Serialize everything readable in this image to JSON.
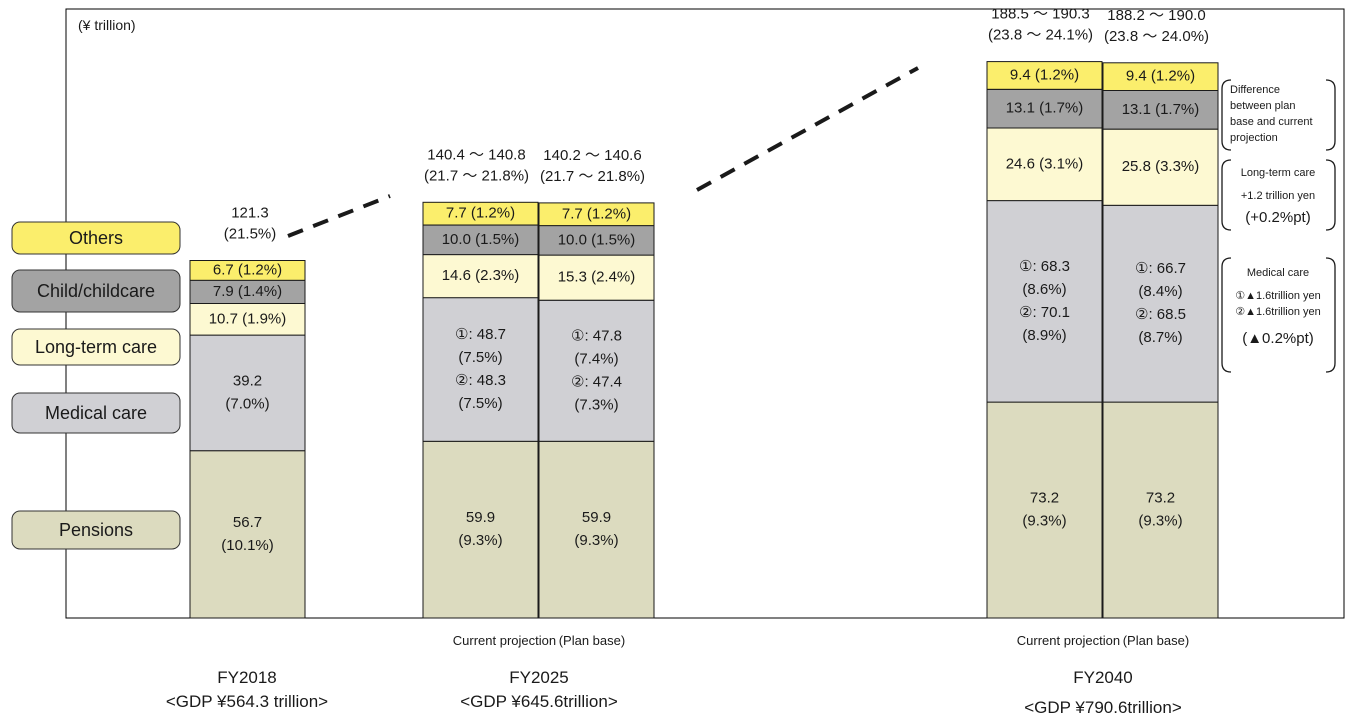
{
  "chart_data": {
    "type": "bar",
    "stacked": true,
    "unit_label": "(¥ trillion)",
    "legend": [
      {
        "key": "others",
        "label": "Others",
        "color": "#fbee6c"
      },
      {
        "key": "child",
        "label": "Child/childcare",
        "color": "#a3a3a3"
      },
      {
        "key": "ltc",
        "label": "Long-term care",
        "color": "#fdf9d2"
      },
      {
        "key": "medical",
        "label": "Medical care",
        "color": "#d0d0d4"
      },
      {
        "key": "pensions",
        "label": "Pensions",
        "color": "#dcdbbf"
      }
    ],
    "groups": [
      {
        "year": "FY2018",
        "gdp": "<GDP ¥564.3 trillion>",
        "projection_label": ""
      },
      {
        "year": "FY2025",
        "gdp": "<GDP ¥645.6trillion>",
        "projection_label": "Current projection (Plan base)"
      },
      {
        "year": "FY2040",
        "gdp": "<GDP ¥790.6trillion>",
        "projection_label": "Current projection (Plan base)"
      }
    ],
    "bars": [
      {
        "group": 0,
        "total": [
          "121.3",
          "(21.5%)"
        ],
        "segments": [
          {
            "key": "pensions",
            "value": 56.7,
            "label": [
              "56.7",
              "(10.1%)"
            ]
          },
          {
            "key": "medical",
            "value": 39.2,
            "label": [
              "39.2",
              "(7.0%)"
            ]
          },
          {
            "key": "ltc",
            "value": 10.7,
            "label": [
              "10.7 (1.9%)"
            ]
          },
          {
            "key": "child",
            "value": 7.9,
            "label": [
              "7.9 (1.4%)"
            ]
          },
          {
            "key": "others",
            "value": 6.7,
            "label": [
              "6.7 (1.2%)"
            ]
          }
        ]
      },
      {
        "group": 1,
        "total": [
          "140.4 ～ 140.8",
          "(21.7 ～ 21.8%)"
        ],
        "segments": [
          {
            "key": "pensions",
            "value": 59.9,
            "label": [
              "59.9",
              "(9.3%)"
            ]
          },
          {
            "key": "medical",
            "value": 48.7,
            "label": [
              "①: 48.7",
              "(7.5%)",
              "②: 48.3",
              "(7.5%)"
            ]
          },
          {
            "key": "ltc",
            "value": 14.6,
            "label": [
              "14.6 (2.3%)"
            ]
          },
          {
            "key": "child",
            "value": 10.0,
            "label": [
              "10.0 (1.5%)"
            ]
          },
          {
            "key": "others",
            "value": 7.7,
            "label": [
              "7.7 (1.2%)"
            ]
          }
        ]
      },
      {
        "group": 1,
        "total": [
          "140.2 ～ 140.6",
          "(21.7 ～ 21.8%)"
        ],
        "segments": [
          {
            "key": "pensions",
            "value": 59.9,
            "label": [
              "59.9",
              "(9.3%)"
            ]
          },
          {
            "key": "medical",
            "value": 47.8,
            "label": [
              "①: 47.8",
              "(7.4%)",
              "②: 47.4",
              "(7.3%)"
            ]
          },
          {
            "key": "ltc",
            "value": 15.3,
            "label": [
              "15.3 (2.4%)"
            ]
          },
          {
            "key": "child",
            "value": 10.0,
            "label": [
              "10.0 (1.5%)"
            ]
          },
          {
            "key": "others",
            "value": 7.7,
            "label": [
              "7.7 (1.2%)"
            ]
          }
        ]
      },
      {
        "group": 2,
        "total": [
          "188.5 ～ 190.3",
          "(23.8 ～ 24.1%)"
        ],
        "segments": [
          {
            "key": "pensions",
            "value": 73.2,
            "label": [
              "73.2",
              "(9.3%)"
            ]
          },
          {
            "key": "medical",
            "value": 68.3,
            "label": [
              "①: 68.3",
              "(8.6%)",
              "②: 70.1",
              "(8.9%)"
            ]
          },
          {
            "key": "ltc",
            "value": 24.6,
            "label": [
              "24.6 (3.1%)"
            ]
          },
          {
            "key": "child",
            "value": 13.1,
            "label": [
              "13.1 (1.7%)"
            ]
          },
          {
            "key": "others",
            "value": 9.4,
            "label": [
              "9.4 (1.2%)"
            ]
          }
        ]
      },
      {
        "group": 2,
        "total": [
          "188.2 ～ 190.0",
          "(23.8 ～ 24.0%)"
        ],
        "segments": [
          {
            "key": "pensions",
            "value": 73.2,
            "label": [
              "73.2",
              "(9.3%)"
            ]
          },
          {
            "key": "medical",
            "value": 66.7,
            "label": [
              "①: 66.7",
              "(8.4%)",
              "②: 68.5",
              "(8.7%)"
            ]
          },
          {
            "key": "ltc",
            "value": 25.8,
            "label": [
              "25.8 (3.3%)"
            ]
          },
          {
            "key": "child",
            "value": 13.1,
            "label": [
              "13.1 (1.7%)"
            ]
          },
          {
            "key": "others",
            "value": 9.4,
            "label": [
              "9.4 (1.2%)"
            ]
          }
        ]
      }
    ],
    "annotations": [
      {
        "id": "difference",
        "lines": [
          "Difference",
          "between plan",
          "base and current",
          "projection"
        ]
      },
      {
        "id": "ltc",
        "lines": [
          "Long-term care",
          "+1.2 trillion yen",
          "(+0.2%pt)"
        ]
      },
      {
        "id": "medical",
        "lines": [
          "Medical care",
          "①▲1.6trillion yen",
          "②▲1.6trillion yen",
          "(▲0.2%pt)"
        ]
      }
    ]
  }
}
